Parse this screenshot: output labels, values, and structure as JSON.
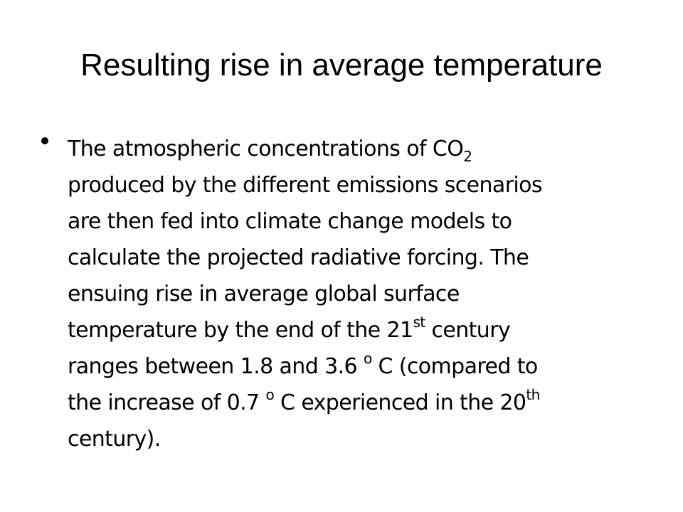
{
  "slide": {
    "title": "Resulting rise in average temperature",
    "lines": [
      {
        "pre": "The atmospheric concentrations of CO",
        "sub": "2"
      },
      {
        "text": "produced by the different emissions scenarios"
      },
      {
        "text": "are then fed into climate change models to"
      },
      {
        "text": "calculate the projected radiative forcing. The"
      },
      {
        "text": "ensuing rise in average global surface"
      },
      {
        "pre": "temperature by the end of the 21",
        "sup": "st",
        "post": " century"
      },
      {
        "pre": "ranges between 1.8 and 3.6 ",
        "sup": "o",
        "post": " C (compared to"
      },
      {
        "pre": "the increase of 0.7 ",
        "sup": "o",
        "post": " C experienced in the 20",
        "sup2": "th"
      },
      {
        "text": "century)."
      }
    ]
  }
}
